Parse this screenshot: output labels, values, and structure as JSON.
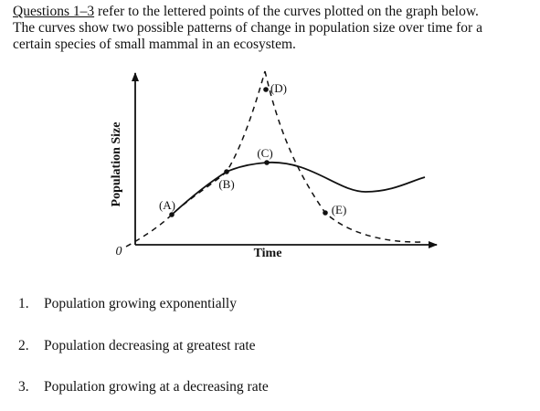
{
  "intro": {
    "ref": "Questions 1–3",
    "lines": [
      "refer to the lettered points of the curves plotted on the graph below.",
      "The curves show two possible patterns of change in population size over time for a",
      "certain species of small mammal in an ecosystem."
    ]
  },
  "graph": {
    "y_label": "Population Size",
    "x_label": "Time",
    "origin": "0",
    "points": [
      "(A)",
      "(B)",
      "(C)",
      "(D)",
      "(E)"
    ]
  },
  "questions": [
    {
      "number": "1.",
      "text": "Population growing exponentially"
    },
    {
      "number": "2.",
      "text": "Population decreasing at greatest rate"
    },
    {
      "number": "3.",
      "text": "Population growing at a decreasing rate"
    }
  ]
}
